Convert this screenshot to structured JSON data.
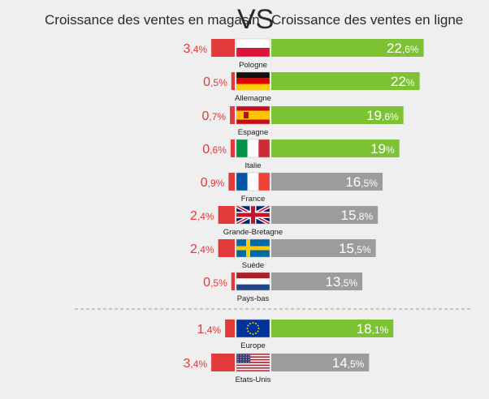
{
  "header": {
    "left_title": "Croissance des ventes en magasin",
    "vs": "VS",
    "right_title": "Croissance des ventes en ligne"
  },
  "colors": {
    "store": "#e03a3a",
    "online_highlight": "#7dc232",
    "online_default": "#9c9c9c",
    "divider": "#9a9a9a"
  },
  "icons": [
    "poland-flag-icon",
    "germany-flag-icon",
    "spain-flag-icon",
    "italy-flag-icon",
    "france-flag-icon",
    "uk-flag-icon",
    "sweden-flag-icon",
    "netherlands-flag-icon",
    "eu-flag-icon",
    "usa-flag-icon"
  ],
  "chart_data": {
    "type": "bar",
    "layout": "diverging-horizontal",
    "unit": "%",
    "series": [
      {
        "name": "Croissance des ventes en magasin",
        "values": [
          3.4,
          0.5,
          0.7,
          0.6,
          0.9,
          2.4,
          2.4,
          0.5,
          1.4,
          3.4
        ]
      },
      {
        "name": "Croissance des ventes en ligne",
        "values": [
          22.6,
          22,
          19.6,
          19,
          16.5,
          15.8,
          15.5,
          13.5,
          18.1,
          14.5
        ]
      }
    ],
    "categories": [
      "Pologne",
      "Allemagne",
      "Espagne",
      "Italie",
      "France",
      "Grande-Bretagne",
      "Suède",
      "Pays-bas",
      "Europe",
      "Etats-Unis"
    ],
    "labels_left": [
      {
        "int": "3",
        "dec": ",4%"
      },
      {
        "int": "0",
        "dec": ",5%"
      },
      {
        "int": "0",
        "dec": ",7%"
      },
      {
        "int": "0",
        "dec": ",6%"
      },
      {
        "int": "0",
        "dec": ",9%"
      },
      {
        "int": "2",
        "dec": ",4%"
      },
      {
        "int": "2",
        "dec": ",4%"
      },
      {
        "int": "0",
        "dec": ",5%"
      },
      {
        "int": "1",
        "dec": ",4%"
      },
      {
        "int": "3",
        "dec": ",4%"
      }
    ],
    "labels_right": [
      {
        "int": "22",
        "dec": ",6%"
      },
      {
        "int": "22",
        "dec": "%"
      },
      {
        "int": "19",
        "dec": ",6%"
      },
      {
        "int": "19",
        "dec": "%"
      },
      {
        "int": "16",
        "dec": ",5%"
      },
      {
        "int": "15",
        "dec": ",8%"
      },
      {
        "int": "15",
        "dec": ",5%"
      },
      {
        "int": "13",
        "dec": ",5%"
      },
      {
        "int": "18",
        "dec": ",1%"
      },
      {
        "int": "14",
        "dec": ",5%"
      }
    ],
    "highlighted": [
      true,
      true,
      true,
      true,
      false,
      false,
      false,
      false,
      true,
      false
    ],
    "flags": [
      "pl",
      "de",
      "es",
      "it",
      "fr",
      "gb",
      "se",
      "nl",
      "eu",
      "us"
    ],
    "groups": [
      [
        0,
        1,
        2,
        3,
        4,
        5,
        6,
        7
      ],
      [
        8,
        9
      ]
    ]
  }
}
